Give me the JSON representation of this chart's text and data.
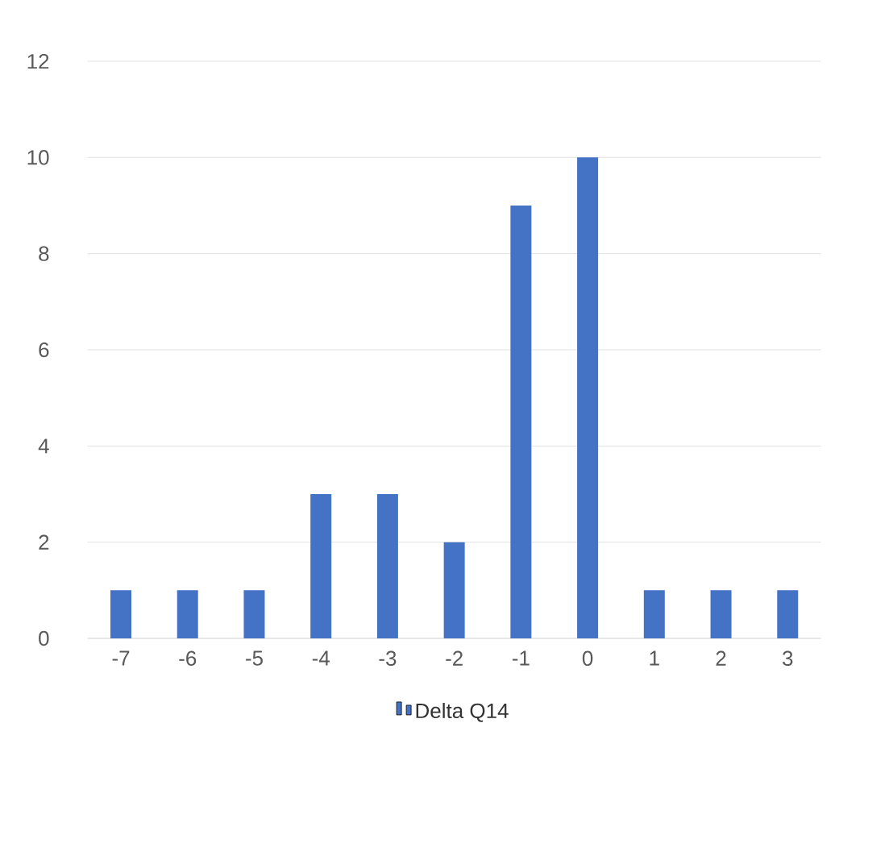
{
  "chart_data": {
    "type": "bar",
    "categories": [
      "-7",
      "-6",
      "-5",
      "-4",
      "-3",
      "-2",
      "-1",
      "0",
      "1",
      "2",
      "3"
    ],
    "series": [
      {
        "name": "Delta Q14",
        "color": "#4472c4",
        "values": [
          1,
          1,
          1,
          3,
          3,
          2,
          9,
          10,
          1,
          1,
          1
        ]
      }
    ],
    "ylim": [
      0,
      12
    ],
    "yticks": [
      0,
      2,
      4,
      6,
      8,
      10,
      12
    ],
    "grid": "y",
    "legend": "bottom"
  }
}
